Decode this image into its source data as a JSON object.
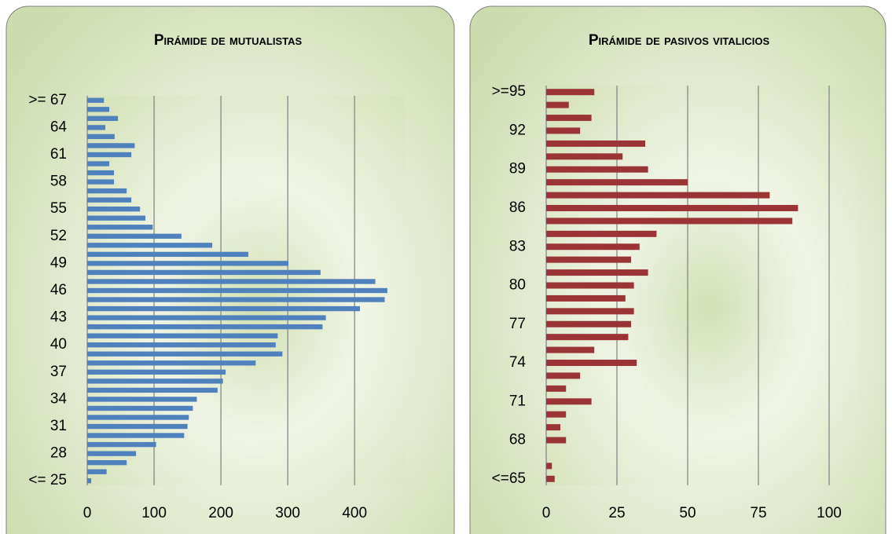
{
  "chart_data": [
    {
      "type": "barh",
      "title": "Pirámide de mutualistas",
      "color": "#4f81bd",
      "categories": [
        "<= 25",
        null,
        null,
        "28",
        null,
        null,
        "31",
        null,
        null,
        "34",
        null,
        null,
        "37",
        null,
        null,
        "40",
        null,
        null,
        "43",
        null,
        null,
        "46",
        null,
        null,
        "49",
        null,
        null,
        "52",
        null,
        null,
        "55",
        null,
        null,
        "58",
        null,
        null,
        "61",
        null,
        null,
        "64",
        null,
        null,
        ">= 67"
      ],
      "values": [
        6,
        29,
        59,
        73,
        103,
        145,
        150,
        152,
        158,
        164,
        195,
        203,
        207,
        252,
        292,
        282,
        285,
        352,
        357,
        408,
        445,
        449,
        431,
        349,
        301,
        241,
        187,
        141,
        98,
        87,
        79,
        66,
        59,
        40,
        40,
        33,
        66,
        71,
        41,
        27,
        46,
        33,
        25
      ],
      "xlim": [
        0,
        475
      ],
      "xticks": [
        0,
        100,
        200,
        300,
        400
      ],
      "grid": true
    },
    {
      "type": "barh",
      "title": "Pirámide de pasivos vitalicios",
      "color": "#9b3535",
      "categories": [
        "<=65",
        null,
        null,
        "68",
        null,
        null,
        "71",
        null,
        null,
        "74",
        null,
        null,
        "77",
        null,
        null,
        "80",
        null,
        null,
        "83",
        null,
        null,
        "86",
        null,
        null,
        "89",
        null,
        null,
        "92",
        null,
        null,
        ">=95"
      ],
      "values": [
        3,
        2,
        0,
        7,
        5,
        7,
        16,
        7,
        12,
        32,
        17,
        29,
        30,
        31,
        28,
        31,
        36,
        30,
        33,
        39,
        87,
        89,
        79,
        50,
        36,
        27,
        35,
        12,
        16,
        8,
        17
      ],
      "xlim": [
        0,
        110
      ],
      "xticks": [
        0,
        25,
        50,
        75,
        100
      ],
      "grid": true
    }
  ]
}
